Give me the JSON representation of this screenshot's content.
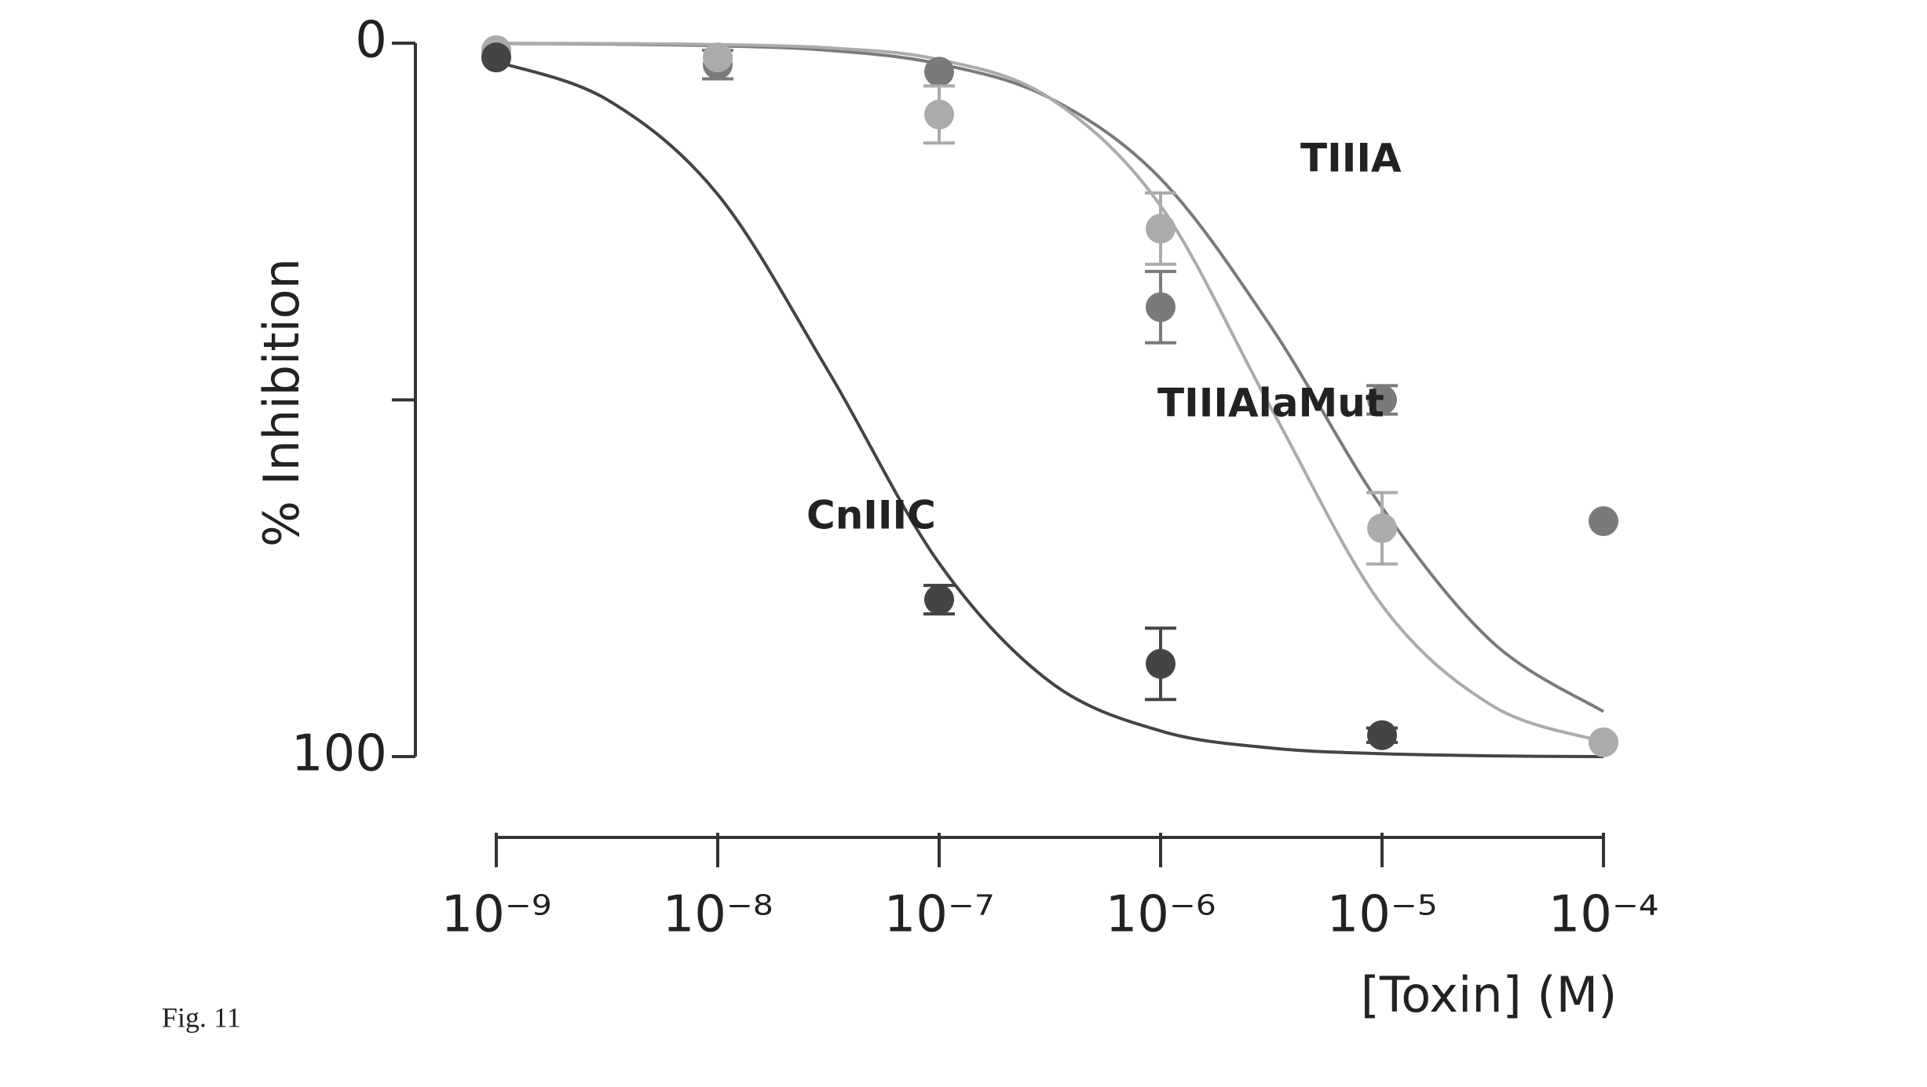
{
  "chart_data": {
    "type": "dose-response",
    "caption": "Fig. 11",
    "x_label": "[Toxin] (M)",
    "y_label": "% Inhibition",
    "xscale": "log",
    "y_inverted": true,
    "xlim": [
      1e-09,
      0.0001
    ],
    "ylim": [
      0,
      100
    ],
    "xticks": [
      {
        "value": 1e-09,
        "label": "10⁻⁹"
      },
      {
        "value": 1e-08,
        "label": "10⁻⁸"
      },
      {
        "value": 1e-07,
        "label": "10⁻⁷"
      },
      {
        "value": 1e-06,
        "label": "10⁻⁶"
      },
      {
        "value": 1e-05,
        "label": "10⁻⁵"
      },
      {
        "value": 0.0001,
        "label": "10⁻⁴"
      }
    ],
    "yticks": [
      0,
      {
        "value": 50,
        "label": null
      },
      100
    ],
    "x": [
      1e-09,
      1e-08,
      1e-07,
      1e-06,
      1e-05,
      0.0001
    ],
    "fit_x": [
      1e-09,
      3.16e-09,
      1e-08,
      3.16e-08,
      1e-07,
      3.16e-07,
      1e-06,
      3.16e-06,
      1e-05,
      3.16e-05,
      0.0001
    ],
    "series": [
      {
        "name": "TIIIA",
        "color": "#7a7a7a",
        "values": [
          1,
          3,
          4,
          37,
          50,
          67
        ],
        "errors": [
          null,
          2,
          null,
          5,
          2,
          null
        ],
        "fit": [
          0.05,
          0.13,
          0.37,
          1.0,
          2.9,
          7.7,
          19.0,
          39.8,
          65.1,
          84.0,
          93.7
        ]
      },
      {
        "name": "TIIIAlaMut",
        "color": "#ababab",
        "values": [
          1,
          2,
          10,
          26,
          68,
          98
        ],
        "errors": [
          null,
          null,
          4,
          5,
          5,
          null
        ],
        "fit": [
          0.01,
          0.05,
          0.19,
          0.66,
          2.3,
          7.7,
          22.8,
          51.2,
          78.8,
          92.9,
          97.9
        ]
      },
      {
        "name": "CnIIIC",
        "color": "#444444",
        "values": [
          2,
          null,
          78,
          87,
          97,
          null
        ],
        "errors": [
          null,
          null,
          2,
          5,
          1,
          null
        ],
        "fit": [
          2.6,
          7.9,
          21.2,
          46,
          72.9,
          89.5,
          96.4,
          98.8,
          99.6,
          99.9,
          100
        ]
      }
    ]
  }
}
